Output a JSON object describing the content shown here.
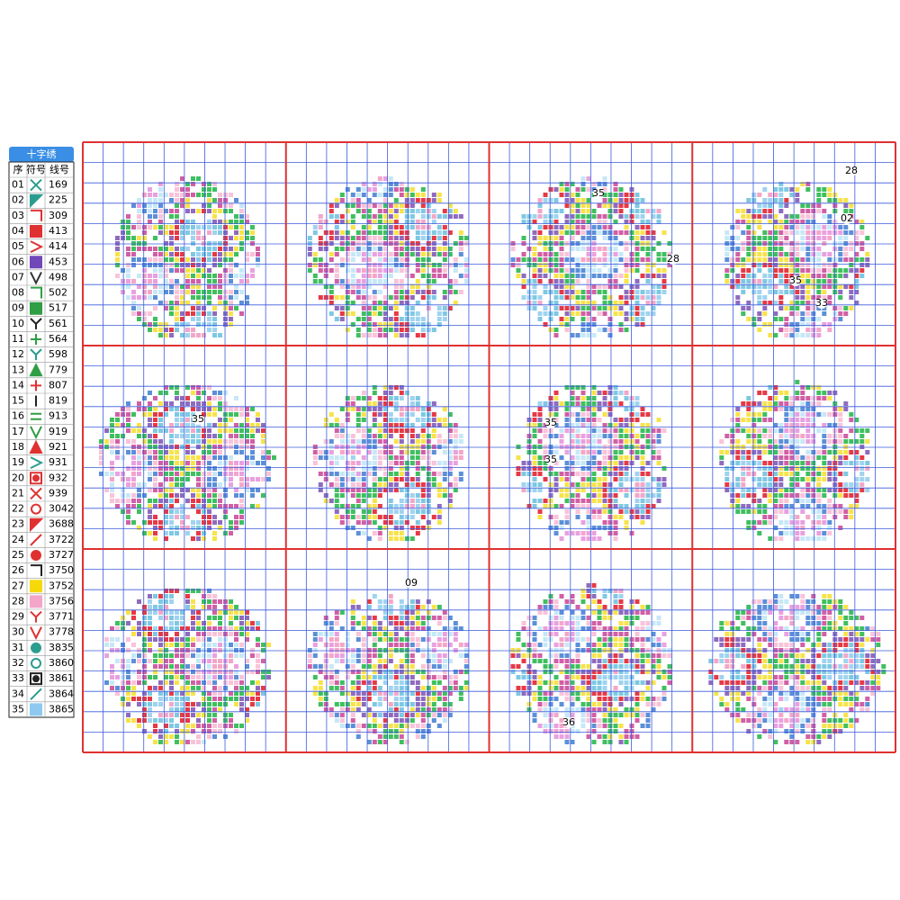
{
  "legend": {
    "title": "十字绣",
    "headers": [
      "序",
      "符号",
      "线号"
    ],
    "rows": [
      [
        "01",
        "169"
      ],
      [
        "02",
        "225"
      ],
      [
        "03",
        "309"
      ],
      [
        "04",
        "413"
      ],
      [
        "05",
        "414"
      ],
      [
        "06",
        "453"
      ],
      [
        "07",
        "498"
      ],
      [
        "08",
        "502"
      ],
      [
        "09",
        "517"
      ],
      [
        "10",
        "561"
      ],
      [
        "11",
        "564"
      ],
      [
        "12",
        "598"
      ],
      [
        "13",
        "779"
      ],
      [
        "14",
        "807"
      ],
      [
        "15",
        "819"
      ],
      [
        "16",
        "913"
      ],
      [
        "17",
        "919"
      ],
      [
        "18",
        "921"
      ],
      [
        "19",
        "931"
      ],
      [
        "20",
        "932"
      ],
      [
        "21",
        "939"
      ],
      [
        "22",
        "3042"
      ],
      [
        "23",
        "3688"
      ],
      [
        "24",
        "3722"
      ],
      [
        "25",
        "3727"
      ],
      [
        "26",
        "3750"
      ],
      [
        "27",
        "3752"
      ],
      [
        "28",
        "3756"
      ],
      [
        "29",
        "3771"
      ],
      [
        "30",
        "3778"
      ],
      [
        "31",
        "3835"
      ],
      [
        "32",
        "3860"
      ],
      [
        "33",
        "3861"
      ],
      [
        "34",
        "3864"
      ],
      [
        "35",
        "3865"
      ]
    ]
  },
  "annotations": [
    "35",
    "28",
    "28",
    "02",
    "35",
    "33",
    "35",
    "35",
    "35",
    "09",
    "36"
  ]
}
